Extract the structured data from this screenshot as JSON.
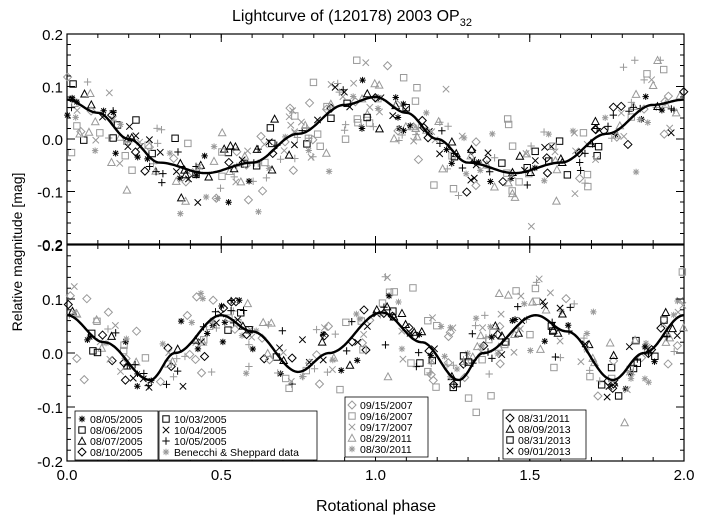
{
  "chart_data": [
    {
      "type": "scatter",
      "panel": "top",
      "title": "Lightcurve of (120178) 2003 OP",
      "title_subscript": "32",
      "xlim": [
        0.0,
        2.0
      ],
      "ylim": [
        -0.2,
        0.2
      ],
      "x_ticks": [
        "0.0",
        "0.5",
        "1.0",
        "1.5",
        "2.0"
      ],
      "y_ticks": [
        "-0.2",
        "-0.1",
        "0.0",
        "0.1",
        "0.2"
      ],
      "grid": false,
      "model": {
        "description_points": [
          [
            0.0,
            0.075
          ],
          [
            0.1,
            0.05
          ],
          [
            0.2,
            0.0
          ],
          [
            0.3,
            -0.045
          ],
          [
            0.45,
            -0.065
          ],
          [
            0.6,
            -0.045
          ],
          [
            0.75,
            0.01
          ],
          [
            0.9,
            0.065
          ],
          [
            1.0,
            0.08
          ],
          [
            1.1,
            0.05
          ],
          [
            1.2,
            0.0
          ],
          [
            1.3,
            -0.045
          ],
          [
            1.45,
            -0.065
          ],
          [
            1.6,
            -0.045
          ],
          [
            1.75,
            0.01
          ],
          [
            1.9,
            0.065
          ],
          [
            2.0,
            0.075
          ]
        ]
      },
      "observed_envelope_black": [
        [
          0.02,
          0.08
        ],
        [
          0.15,
          0.05
        ],
        [
          0.3,
          0.0
        ],
        [
          0.4,
          -0.04
        ],
        [
          0.55,
          -0.05
        ],
        [
          0.7,
          0.0
        ],
        [
          0.85,
          0.06
        ],
        [
          1.02,
          0.08
        ],
        [
          1.15,
          0.06
        ],
        [
          1.3,
          0.0
        ],
        [
          1.45,
          -0.05
        ],
        [
          1.55,
          -0.04
        ],
        [
          1.7,
          0.0
        ],
        [
          1.85,
          0.06
        ],
        [
          1.98,
          0.08
        ]
      ],
      "observed_envelope_gray": [
        [
          0.0,
          0.1
        ],
        [
          0.2,
          0.0
        ],
        [
          0.35,
          -0.08
        ],
        [
          0.5,
          -0.09
        ],
        [
          0.65,
          -0.02
        ],
        [
          0.8,
          0.08
        ],
        [
          0.95,
          0.1
        ],
        [
          1.2,
          0.0
        ],
        [
          1.35,
          -0.08
        ],
        [
          1.5,
          -0.09
        ],
        [
          1.65,
          -0.02
        ],
        [
          1.85,
          0.1
        ],
        [
          2.0,
          0.12
        ]
      ]
    },
    {
      "type": "scatter",
      "panel": "bottom",
      "xlim": [
        0.0,
        2.0
      ],
      "ylim": [
        -0.2,
        0.2
      ],
      "x_ticks": [
        "0.0",
        "0.5",
        "1.0",
        "1.5",
        "2.0"
      ],
      "y_ticks": [
        "-0.2",
        "-0.1",
        "0.0",
        "0.1",
        "0.2"
      ],
      "xlabel": "Rotational phase",
      "ylabel": "Relative magnitude [mag]",
      "grid": false,
      "model": {
        "description_points": [
          [
            0.0,
            0.07
          ],
          [
            0.12,
            0.02
          ],
          [
            0.27,
            -0.05
          ],
          [
            0.35,
            0.0
          ],
          [
            0.5,
            0.07
          ],
          [
            0.6,
            0.04
          ],
          [
            0.75,
            -0.035
          ],
          [
            0.85,
            0.0
          ],
          [
            1.02,
            0.075
          ],
          [
            1.15,
            0.02
          ],
          [
            1.27,
            -0.05
          ],
          [
            1.35,
            0.0
          ],
          [
            1.52,
            0.07
          ],
          [
            1.62,
            0.04
          ],
          [
            1.77,
            -0.05
          ],
          [
            1.87,
            0.0
          ],
          [
            2.0,
            0.07
          ]
        ]
      },
      "legends": [
        {
          "placement": "bottom-left",
          "entries": [
            {
              "marker": "asterisk",
              "color": "#000000",
              "label": "08/05/2005"
            },
            {
              "marker": "square",
              "color": "#000000",
              "label": "08/06/2005"
            },
            {
              "marker": "triangle",
              "color": "#000000",
              "label": "08/07/2005"
            },
            {
              "marker": "diamond",
              "color": "#000000",
              "label": "08/10/2005"
            }
          ]
        },
        {
          "placement": "bottom-left-center",
          "entries": [
            {
              "marker": "square",
              "color": "#000000",
              "label": "10/03/2005"
            },
            {
              "marker": "cross",
              "color": "#000000",
              "label": "10/04/2005"
            },
            {
              "marker": "plus",
              "color": "#000000",
              "label": "10/05/2005"
            },
            {
              "marker": "asterisk",
              "color": "#999999",
              "label": "Benecchi & Sheppard data"
            }
          ]
        },
        {
          "placement": "bottom-center",
          "entries": [
            {
              "marker": "diamond",
              "color": "#999999",
              "label": "09/15/2007"
            },
            {
              "marker": "square",
              "color": "#999999",
              "label": "09/16/2007"
            },
            {
              "marker": "cross",
              "color": "#999999",
              "label": "09/17/2007"
            },
            {
              "marker": "triangle",
              "color": "#999999",
              "label": "08/29/2011"
            },
            {
              "marker": "asterisk",
              "color": "#999999",
              "label": "08/30/2011"
            }
          ]
        },
        {
          "placement": "bottom-right",
          "entries": [
            {
              "marker": "diamond",
              "color": "#000000",
              "label": "08/31/2011"
            },
            {
              "marker": "triangle",
              "color": "#000000",
              "label": "08/09/2013"
            },
            {
              "marker": "square",
              "color": "#000000",
              "label": "08/31/2013"
            },
            {
              "marker": "cross",
              "color": "#000000",
              "label": "09/01/2013"
            }
          ]
        }
      ]
    }
  ],
  "colors": {
    "black": "#000000",
    "gray": "#999999"
  }
}
